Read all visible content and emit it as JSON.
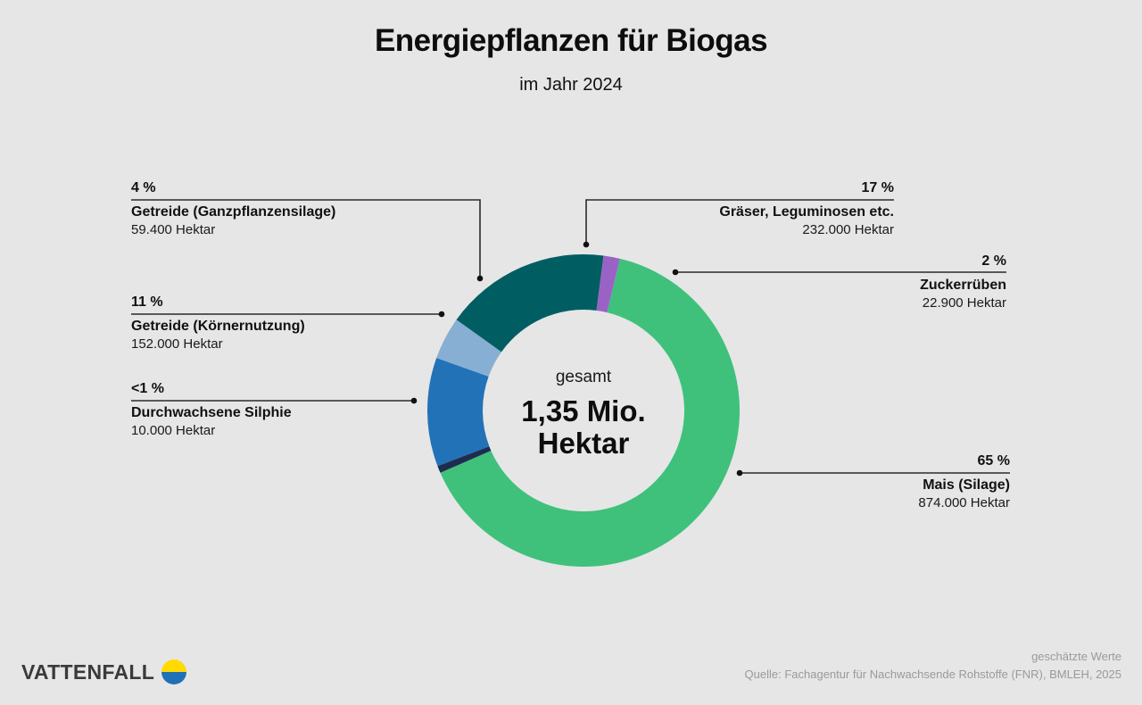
{
  "header": {
    "title": "Energiepflanzen für Biogas",
    "subtitle": "im Jahr 2024"
  },
  "center": {
    "label": "gesamt",
    "value_line1": "1,35 Mio.",
    "value_line2": "Hektar"
  },
  "segments": [
    {
      "name": "Mais (Silage)",
      "pct_label": "65 %",
      "value_label": "874.000 Hektar",
      "hectares": 874000,
      "color": "#3fc17c"
    },
    {
      "name": "Durchwachsene Silphie",
      "pct_label": "<1 %",
      "value_label": "10.000 Hektar",
      "hectares": 10000,
      "color": "#1e2d4f"
    },
    {
      "name": "Getreide (Körnernutzung)",
      "pct_label": "11 %",
      "value_label": "152.000 Hektar",
      "hectares": 152000,
      "color": "#2272b8"
    },
    {
      "name": "Getreide (Ganzpflanzensilage)",
      "pct_label": "4 %",
      "value_label": "59.400 Hektar",
      "hectares": 59400,
      "color": "#87afd3"
    },
    {
      "name": "Gräser, Leguminosen etc.",
      "pct_label": "17 %",
      "value_label": "232.000 Hektar",
      "hectares": 232000,
      "color": "#005e63"
    },
    {
      "name": "Zuckerrüben",
      "pct_label": "2 %",
      "value_label": "22.900 Hektar",
      "hectares": 22900,
      "color": "#9b62c6"
    }
  ],
  "footer": {
    "note": "geschätzte Werte",
    "source": "Quelle: Fachagentur für Nachwachsende Rohstoffe (FNR), BMLEH, 2025"
  },
  "brand": {
    "name": "VATTENFALL",
    "logo_colors": {
      "top": "#ffda00",
      "bottom": "#2071b5"
    }
  },
  "chart_data": {
    "type": "pie",
    "variant": "donut",
    "title": "Energiepflanzen für Biogas",
    "subtitle": "im Jahr 2024",
    "unit": "Hektar",
    "total_label": "gesamt 1,35 Mio. Hektar",
    "total": 1350000,
    "categories": [
      "Mais (Silage)",
      "Gräser, Leguminosen etc.",
      "Getreide (Körnernutzung)",
      "Getreide (Ganzpflanzensilage)",
      "Zuckerrüben",
      "Durchwachsene Silphie"
    ],
    "values": [
      874000,
      232000,
      152000,
      59400,
      22900,
      10000
    ],
    "percent_labels": [
      "65 %",
      "17 %",
      "11 %",
      "4 %",
      "2 %",
      "<1 %"
    ],
    "colors": [
      "#3fc17c",
      "#005e63",
      "#2272b8",
      "#87afd3",
      "#9b62c6",
      "#1e2d4f"
    ],
    "annotations": [
      "geschätzte Werte",
      "Quelle: Fachagentur für Nachwachsende Rohstoffe (FNR), BMLEH, 2025"
    ],
    "legend": "callout labels with leader lines"
  }
}
